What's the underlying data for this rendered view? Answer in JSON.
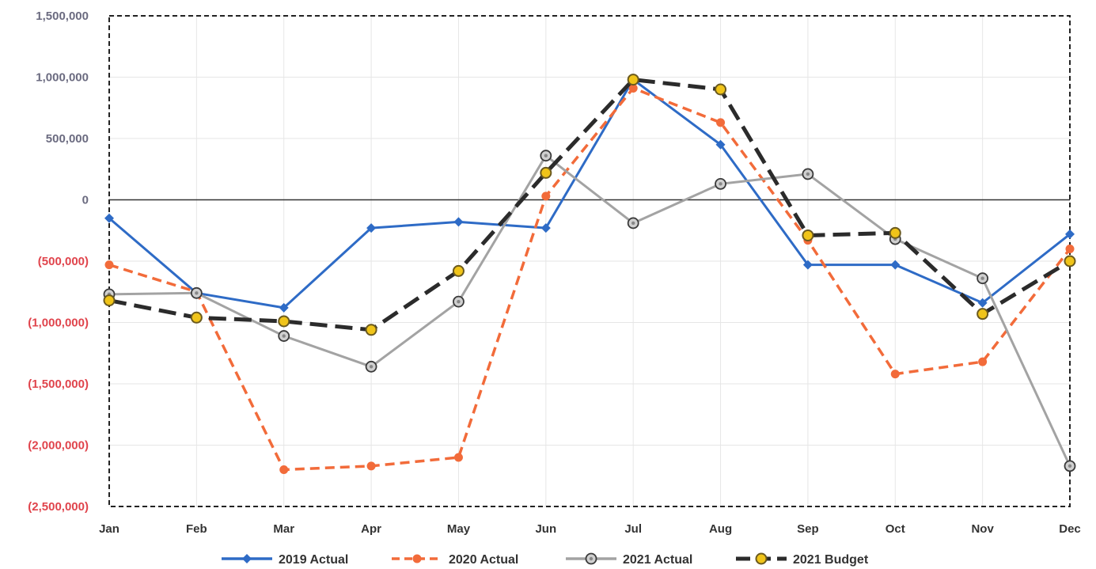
{
  "chart_data": {
    "type": "line",
    "categories": [
      "Jan",
      "Feb",
      "Mar",
      "Apr",
      "May",
      "Jun",
      "Jul",
      "Aug",
      "Sep",
      "Oct",
      "Nov",
      "Dec"
    ],
    "ylim": [
      -2500000,
      1500000
    ],
    "y_ticks": [
      {
        "value": 1500000,
        "label": "1,500,000"
      },
      {
        "value": 1000000,
        "label": "1,000,000"
      },
      {
        "value": 500000,
        "label": "500,000"
      },
      {
        "value": 0,
        "label": "0"
      },
      {
        "value": -500000,
        "label": "(500,000)"
      },
      {
        "value": -1000000,
        "label": "(1,000,000)"
      },
      {
        "value": -1500000,
        "label": "(1,500,000)"
      },
      {
        "value": -2000000,
        "label": "(2,000,000)"
      },
      {
        "value": -2500000,
        "label": "(2,500,000)"
      }
    ],
    "positive_tick_color": "#6b6b80",
    "negative_tick_color": "#e0444c",
    "grid": true,
    "legend_position": "bottom",
    "series": [
      {
        "name": "2019 Actual",
        "color": "#2e6bc6",
        "dash": "solid",
        "marker": "diamond",
        "values": [
          -150000,
          -760000,
          -880000,
          -230000,
          -180000,
          -230000,
          980000,
          450000,
          -530000,
          -530000,
          -840000,
          -280000
        ]
      },
      {
        "name": "2020 Actual",
        "color": "#f26b3a",
        "dash": "dashed",
        "marker": "circle",
        "values": [
          -530000,
          -750000,
          -2200000,
          -2170000,
          -2100000,
          30000,
          910000,
          630000,
          -330000,
          -1420000,
          -1320000,
          -400000
        ]
      },
      {
        "name": "2021 Actual",
        "color": "#a3a3a3",
        "dash": "solid",
        "marker": "ring",
        "values": [
          -770000,
          -760000,
          -1110000,
          -1360000,
          -830000,
          360000,
          -190000,
          130000,
          210000,
          -320000,
          -640000,
          -2170000
        ]
      },
      {
        "name": "2021 Budget",
        "color": "#2b2b2b",
        "dash": "longdash",
        "marker": "gold",
        "values": [
          -820000,
          -960000,
          -990000,
          -1060000,
          -580000,
          220000,
          980000,
          900000,
          -290000,
          -270000,
          -930000,
          -500000
        ]
      }
    ]
  }
}
